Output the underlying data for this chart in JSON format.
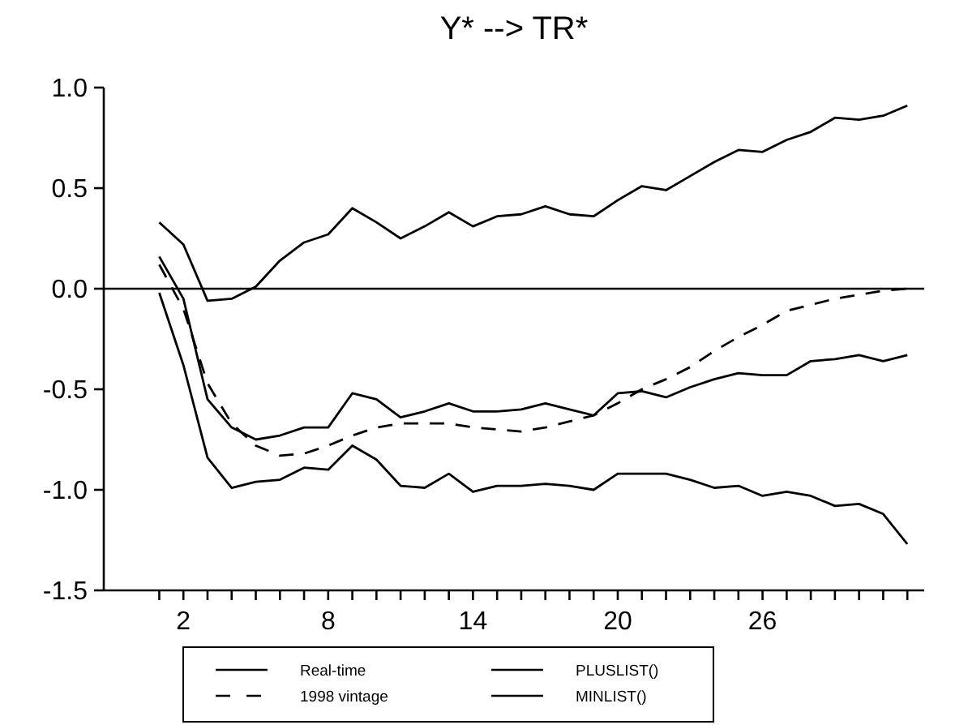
{
  "chart_data": {
    "type": "line",
    "title": "Y* --> TR*",
    "x": [
      1,
      2,
      3,
      4,
      5,
      6,
      7,
      8,
      9,
      10,
      11,
      12,
      13,
      14,
      15,
      16,
      17,
      18,
      19,
      20,
      21,
      22,
      23,
      24,
      25,
      26,
      27,
      28,
      29,
      30,
      31,
      32
    ],
    "xlim": [
      -1.3,
      32.7
    ],
    "xticks": [
      {
        "value": 1,
        "label": null
      },
      2,
      {
        "value": 3,
        "label": null
      },
      {
        "value": 4,
        "label": null
      },
      {
        "value": 5,
        "label": null
      },
      {
        "value": 6,
        "label": null
      },
      {
        "value": 7,
        "label": null
      },
      8,
      {
        "value": 9,
        "label": null
      },
      {
        "value": 10,
        "label": null
      },
      {
        "value": 11,
        "label": null
      },
      {
        "value": 12,
        "label": null
      },
      {
        "value": 13,
        "label": null
      },
      14,
      {
        "value": 15,
        "label": null
      },
      {
        "value": 16,
        "label": null
      },
      {
        "value": 17,
        "label": null
      },
      {
        "value": 18,
        "label": null
      },
      {
        "value": 19,
        "label": null
      },
      20,
      {
        "value": 21,
        "label": null
      },
      {
        "value": 22,
        "label": null
      },
      {
        "value": 23,
        "label": null
      },
      {
        "value": 24,
        "label": null
      },
      {
        "value": 25,
        "label": null
      },
      26,
      {
        "value": 27,
        "label": null
      },
      {
        "value": 28,
        "label": null
      },
      {
        "value": 29,
        "label": null
      },
      {
        "value": 30,
        "label": null
      },
      {
        "value": 31,
        "label": null
      },
      {
        "value": 32,
        "label": null
      }
    ],
    "ylim": [
      -1.5,
      1.0
    ],
    "yticks": [
      {
        "value": -1.5,
        "label": "-1.5"
      },
      {
        "value": -1,
        "label": "-1.0"
      },
      {
        "value": -0.5,
        "label": "-0.5"
      },
      {
        "value": 0,
        "label": "0.0"
      },
      {
        "value": 0.5,
        "label": "0.5"
      },
      {
        "value": 1,
        "label": "1.0"
      }
    ],
    "ref_lines": [
      {
        "axis": "y",
        "value": 0,
        "color": "#000000"
      }
    ],
    "grid": false,
    "legend": "bottom",
    "marker": "none",
    "series": [
      {
        "name": "Real-time",
        "color": "#000000",
        "line_style": "solid",
        "values": [
          0.16,
          -0.05,
          -0.55,
          -0.69,
          -0.75,
          -0.73,
          -0.69,
          -0.69,
          -0.52,
          -0.55,
          -0.64,
          -0.61,
          -0.57,
          -0.61,
          -0.61,
          -0.6,
          -0.57,
          -0.6,
          -0.63,
          -0.52,
          -0.51,
          -0.54,
          -0.49,
          -0.45,
          -0.42,
          -0.43,
          -0.43,
          -0.36,
          -0.35,
          -0.33,
          -0.36,
          -0.33
        ]
      },
      {
        "name": "1998 vintage",
        "color": "#000000",
        "line_style": "dashed",
        "values": [
          0.12,
          -0.1,
          -0.47,
          -0.67,
          -0.78,
          -0.83,
          -0.82,
          -0.78,
          -0.73,
          -0.69,
          -0.67,
          -0.67,
          -0.67,
          -0.69,
          -0.7,
          -0.71,
          -0.69,
          -0.66,
          -0.63,
          -0.57,
          -0.5,
          -0.45,
          -0.39,
          -0.31,
          -0.24,
          -0.18,
          -0.11,
          -0.08,
          -0.05,
          -0.03,
          -0.01,
          0.0
        ]
      },
      {
        "name": "PLUSLIST()",
        "color": "#000000",
        "line_style": "solid",
        "values": [
          0.33,
          0.22,
          -0.06,
          -0.05,
          0.01,
          0.14,
          0.23,
          0.27,
          0.4,
          0.33,
          0.25,
          0.31,
          0.38,
          0.31,
          0.36,
          0.37,
          0.41,
          0.37,
          0.36,
          0.44,
          0.51,
          0.49,
          0.56,
          0.63,
          0.69,
          0.68,
          0.74,
          0.78,
          0.85,
          0.84,
          0.86,
          0.91
        ]
      },
      {
        "name": "MINLIST()",
        "color": "#000000",
        "line_style": "solid",
        "values": [
          -0.02,
          -0.38,
          -0.84,
          -0.99,
          -0.96,
          -0.95,
          -0.89,
          -0.9,
          -0.78,
          -0.85,
          -0.98,
          -0.99,
          -0.92,
          -1.01,
          -0.98,
          -0.98,
          -0.97,
          -0.98,
          -1.0,
          -0.92,
          -0.92,
          -0.92,
          -0.95,
          -0.99,
          -0.98,
          -1.03,
          -1.01,
          -1.03,
          -1.08,
          -1.07,
          -1.12,
          -1.27
        ]
      }
    ]
  }
}
